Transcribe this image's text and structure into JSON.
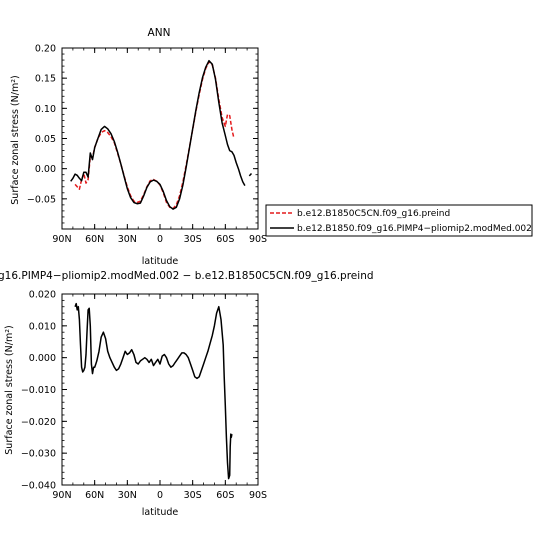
{
  "chart_data": [
    {
      "type": "line",
      "title": "ANN",
      "xlabel": "latitude",
      "ylabel": "Surface zonal stress (N/m²)",
      "xlim": [
        90,
        -90
      ],
      "ylim": [
        -0.1,
        0.2
      ],
      "x_tick_values": [
        90,
        60,
        30,
        0,
        -30,
        -60,
        -90
      ],
      "x_tick_labels": [
        "90N",
        "60N",
        "30N",
        "0",
        "30S",
        "60S",
        "90S"
      ],
      "y_tick_values": [
        -0.05,
        0.0,
        0.05,
        0.1,
        0.15,
        0.2
      ],
      "y_tick_labels": [
        "−0.05",
        "0.00",
        "0.05",
        "0.10",
        "0.15",
        "0.20"
      ],
      "legend_position": "right",
      "series": [
        {
          "name": "b.e12.B1850C5CN.f09_g16.preind",
          "color": "#e41a1c",
          "dash": "dashed",
          "x": [
            78,
            76,
            74,
            72,
            70,
            68,
            66,
            64,
            62,
            60,
            57,
            54,
            51,
            48,
            45,
            42,
            39,
            36,
            33,
            30,
            27,
            24,
            21,
            18,
            15,
            12,
            9,
            6,
            3,
            0,
            -3,
            -6,
            -9,
            -12,
            -15,
            -18,
            -21,
            -24,
            -27,
            -30,
            -33,
            -36,
            -39,
            -42,
            -45,
            -48,
            -51,
            -54,
            -57,
            -60,
            -62,
            -64,
            -66,
            -68
          ],
          "y": [
            -0.026,
            -0.03,
            -0.034,
            -0.018,
            -0.008,
            -0.024,
            -0.018,
            0.02,
            0.018,
            0.035,
            0.05,
            0.06,
            0.063,
            0.06,
            0.053,
            0.043,
            0.026,
            0.008,
            -0.012,
            -0.03,
            -0.045,
            -0.054,
            -0.056,
            -0.054,
            -0.043,
            -0.03,
            -0.02,
            -0.018,
            -0.021,
            -0.027,
            -0.04,
            -0.056,
            -0.064,
            -0.066,
            -0.06,
            -0.045,
            -0.022,
            0.005,
            0.035,
            0.065,
            0.095,
            0.123,
            0.148,
            0.166,
            0.177,
            0.172,
            0.15,
            0.115,
            0.085,
            0.07,
            0.09,
            0.088,
            0.065,
            0.05
          ]
        },
        {
          "name": "b.e12.B1850.f09_g16.PIMP4−pliomip2.modMed.002",
          "color": "#000000",
          "dash": "solid",
          "x": [
            82,
            80,
            78,
            76,
            74,
            72,
            70,
            68,
            66,
            64,
            62,
            60,
            57,
            54,
            51,
            48,
            45,
            42,
            39,
            36,
            33,
            30,
            27,
            24,
            21,
            18,
            15,
            12,
            9,
            6,
            3,
            0,
            -3,
            -6,
            -9,
            -12,
            -15,
            -18,
            -21,
            -24,
            -27,
            -30,
            -33,
            -36,
            -39,
            -42,
            -45,
            -48,
            -51,
            -54,
            -57,
            -60,
            -62,
            -64,
            -66,
            -68,
            -70,
            -72,
            -74,
            -76,
            -78
          ],
          "y": [
            -0.021,
            -0.016,
            -0.009,
            -0.011,
            -0.016,
            -0.02,
            -0.006,
            -0.006,
            -0.014,
            0.026,
            0.015,
            0.035,
            0.05,
            0.065,
            0.07,
            0.066,
            0.058,
            0.045,
            0.028,
            0.008,
            -0.013,
            -0.033,
            -0.048,
            -0.056,
            -0.058,
            -0.057,
            -0.045,
            -0.031,
            -0.022,
            -0.019,
            -0.021,
            -0.026,
            -0.038,
            -0.053,
            -0.063,
            -0.067,
            -0.064,
            -0.05,
            -0.027,
            0.002,
            0.034,
            0.066,
            0.097,
            0.126,
            0.151,
            0.168,
            0.179,
            0.173,
            0.148,
            0.11,
            0.076,
            0.055,
            0.04,
            0.03,
            0.028,
            0.022,
            0.01,
            0.0,
            -0.012,
            -0.022,
            -0.028
          ]
        }
      ],
      "extra_segments": [
        {
          "color": "#000000",
          "x": [
            -82,
            -84
          ],
          "y": [
            -0.012,
            -0.008
          ]
        }
      ]
    },
    {
      "type": "line",
      "title": "g16.PIMP4−pliomip2.modMed.002 − b.e12.B1850C5CN.f09_g16.preind",
      "xlabel": "latitude",
      "ylabel": "Surface zonal stress (N/m²)",
      "xlim": [
        90,
        -90
      ],
      "ylim": [
        -0.04,
        0.02
      ],
      "x_tick_values": [
        90,
        60,
        30,
        0,
        -30,
        -60,
        -90
      ],
      "x_tick_labels": [
        "90N",
        "60N",
        "30N",
        "0",
        "30S",
        "60S",
        "90S"
      ],
      "y_tick_values": [
        -0.04,
        -0.03,
        -0.02,
        -0.01,
        0.0,
        0.01,
        0.02
      ],
      "y_tick_labels": [
        "−0.040",
        "−0.030",
        "−0.020",
        "−0.010",
        "0.000",
        "0.010",
        "0.020"
      ],
      "series": [
        {
          "color": "#000000",
          "dash": "solid",
          "x": [
            78,
            77,
            76,
            75,
            74,
            73,
            72,
            71,
            70,
            69,
            68,
            67,
            66,
            65,
            64,
            63,
            62,
            61,
            60,
            59,
            58,
            56,
            54,
            52,
            50,
            48,
            46,
            44,
            42,
            40,
            38,
            36,
            34,
            32,
            30,
            28,
            26,
            24,
            22,
            20,
            18,
            16,
            14,
            12,
            10,
            8,
            6,
            4,
            2,
            0,
            -2,
            -4,
            -6,
            -8,
            -10,
            -12,
            -14,
            -16,
            -18,
            -20,
            -22,
            -24,
            -26,
            -28,
            -30,
            -32,
            -34,
            -36,
            -38,
            -40,
            -42,
            -44,
            -46,
            -48,
            -50,
            -52,
            -54,
            -56,
            -58,
            -59,
            -60,
            -61,
            -62,
            -63,
            -64,
            -64.5,
            -65,
            -65.5,
            -66
          ],
          "y": [
            0.016,
            0.017,
            0.015,
            0.016,
            0.012,
            0.004,
            -0.003,
            -0.0045,
            -0.004,
            -0.003,
            0.001,
            0.008,
            0.015,
            0.0155,
            0.01,
            -0.002,
            -0.005,
            -0.003,
            -0.003,
            -0.002,
            -0.001,
            0.002,
            0.0065,
            0.008,
            0.006,
            0.002,
            0.0,
            -0.0015,
            -0.003,
            -0.004,
            -0.0035,
            -0.002,
            0.0,
            0.002,
            0.001,
            0.0015,
            0.0025,
            0.001,
            -0.0015,
            -0.002,
            -0.001,
            -0.0005,
            0.0,
            -0.0005,
            -0.0015,
            -0.0005,
            -0.0025,
            -0.0015,
            -0.0005,
            -0.002,
            0.0005,
            0.001,
            0.0,
            -0.002,
            -0.003,
            -0.0025,
            -0.0015,
            -0.0005,
            0.0005,
            0.0015,
            0.0015,
            0.001,
            0.0,
            -0.002,
            -0.004,
            -0.006,
            -0.0065,
            -0.006,
            -0.004,
            -0.002,
            0.0,
            0.002,
            0.0045,
            0.007,
            0.01,
            0.014,
            0.016,
            0.012,
            0.004,
            -0.006,
            -0.015,
            -0.025,
            -0.033,
            -0.038,
            -0.037,
            -0.028,
            -0.024,
            -0.025,
            -0.024
          ]
        }
      ]
    }
  ]
}
